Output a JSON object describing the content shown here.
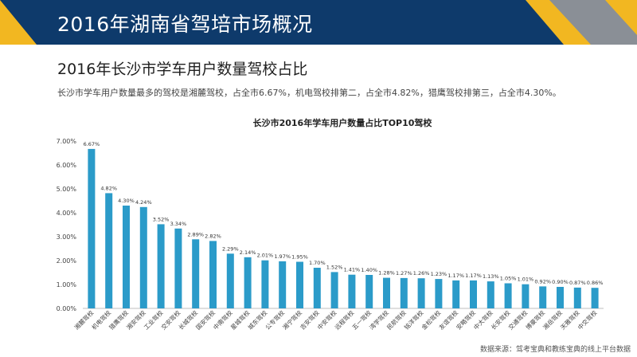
{
  "header": {
    "title": "2016年湖南省驾培市场概况",
    "colors": {
      "navy": "#0e3a6b",
      "gold": "#f2b721",
      "gray": "#8a8f96"
    }
  },
  "section_title": "2016年长沙市学车用户数量驾校占比",
  "summary": "长沙市学车用户数量最多的驾校是湘麓驾校，占全市6.67%，机电驾校排第二，占全市4.82%，猎鹰驾校排第三，占全市4.30%。",
  "source": "数据来源：驾考宝典和教练宝典的线上平台数据",
  "chart_data": {
    "type": "bar",
    "title": "长沙市2016年学车用户数量占比TOP10驾校",
    "categories": [
      "湘麓驾校",
      "机电驾校",
      "猎鹰驾校",
      "湘安驾校",
      "工业驾校",
      "交安驾校",
      "长城驾校",
      "国安驾校",
      "中南驾校",
      "星城驾校",
      "城东驾校",
      "公专驾校",
      "湘宁驾校",
      "吉安驾校",
      "中安驾校",
      "远程驾校",
      "五一驾校",
      "湾学驾校",
      "民航驾校",
      "铭洋驾校",
      "金松驾校",
      "友谊驾校",
      "安略驾校",
      "中大驾校",
      "长安驾校",
      "交通驾校",
      "博豪驾校",
      "湘岳驾校",
      "天雅驾校",
      "中交驾校"
    ],
    "values": [
      6.67,
      4.82,
      4.3,
      4.24,
      3.52,
      3.34,
      2.89,
      2.82,
      2.29,
      2.14,
      2.01,
      1.97,
      1.95,
      1.7,
      1.52,
      1.41,
      1.4,
      1.28,
      1.27,
      1.26,
      1.23,
      1.17,
      1.17,
      1.13,
      1.05,
      1.01,
      0.92,
      0.9,
      0.87,
      0.86
    ],
    "value_labels": [
      "6.67%",
      "4.82%",
      "4.30%",
      "4.24%",
      "3.52%",
      "3.34%",
      "2.89%",
      "2.82%",
      "2.29%",
      "2.14%",
      "2.01%",
      "1.97%",
      "1.95%",
      "1.70%",
      "1.52%",
      "1.41%",
      "1.40%",
      "1.28%",
      "1.27%",
      "1.26%",
      "1.23%",
      "1.17%",
      "1.17%",
      "1.13%",
      "1.05%",
      "1.01%",
      "0.92%",
      "0.90%",
      "0.87%",
      "0.86%"
    ],
    "yticks": [
      "0.00%",
      "1.00%",
      "2.00%",
      "3.00%",
      "4.00%",
      "5.00%",
      "6.00%",
      "7.00%"
    ],
    "ylim": [
      0,
      7
    ],
    "bar_color": "#2b9bc9",
    "grid": false,
    "legend": "none"
  }
}
